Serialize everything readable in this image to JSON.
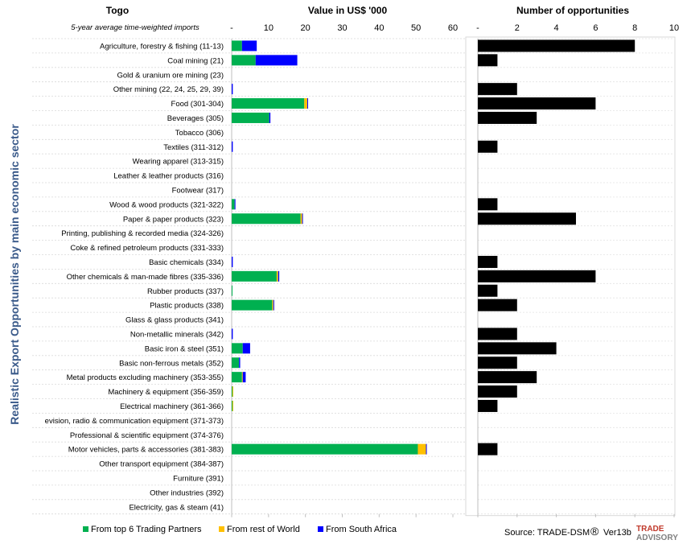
{
  "header": {
    "country": "Togo",
    "subtitle": "5-year average time-weighted imports",
    "value_title": "Value in US$ '000",
    "count_title": "Number of opportunities"
  },
  "y_axis_label": "Realistic Export Opportunities by main economic sector",
  "legend": [
    {
      "name": "From top 6 Trading Partners",
      "color": "#00b050"
    },
    {
      "name": "From rest of World",
      "color": "#ffc000"
    },
    {
      "name": "From South Africa",
      "color": "#0000ff"
    }
  ],
  "source": "Source: TRADE-DSM",
  "version": "Ver13b",
  "logo": {
    "line1": "TRADE",
    "line2": "ADVISORY"
  },
  "colors": {
    "top6": "#00b050",
    "row": "#ffc000",
    "sa": "#0000ff",
    "count": "#000000",
    "ylabel": "#3a5a8a",
    "logo_red": "#c0392b"
  },
  "chart_data": [
    {
      "type": "bar",
      "orientation": "horizontal",
      "stacked": true,
      "title": "Value in US$ '000",
      "xlim": [
        0,
        60
      ],
      "xticks": [
        "-",
        "10",
        "20",
        "30",
        "40",
        "50",
        "60"
      ],
      "categories": [
        "Agriculture, forestry & fishing (11-13)",
        "Coal mining (21)",
        "Gold & uranium ore mining (23)",
        "Other mining (22, 24, 25, 29, 39)",
        "Food (301-304)",
        "Beverages (305)",
        "Tobacco (306)",
        "Textiles (311-312)",
        "Wearing apparel (313-315)",
        "Leather & leather products (316)",
        "Footwear (317)",
        "Wood & wood products (321-322)",
        "Paper & paper products (323)",
        "Printing, publishing & recorded media (324-326)",
        "Coke & refined petroleum products (331-333)",
        "Basic chemicals (334)",
        "Other chemicals & man-made fibres (335-336)",
        "Rubber products (337)",
        "Plastic products (338)",
        "Glass & glass products (341)",
        "Non-metallic minerals (342)",
        "Basic iron & steel (351)",
        "Basic non-ferrous metals (352)",
        "Metal products excluding machinery (353-355)",
        "Machinery & equipment (356-359)",
        "Electrical machinery (361-366)",
        "evision, radio & communication equipment (371-373)",
        "Professional & scientific equipment (374-376)",
        "Motor vehicles, parts & accessories (381-383)",
        "Other transport equipment (384-387)",
        "Furniture (391)",
        "Other industries (392)",
        "Electricity, gas & steam (41)"
      ],
      "series": [
        {
          "name": "From top 6 Trading Partners",
          "values": [
            2.8,
            6.5,
            0,
            0,
            19.7,
            10.2,
            0,
            0,
            0,
            0,
            0,
            0.8,
            18.7,
            0,
            0,
            0,
            12.2,
            0.2,
            11.0,
            0,
            0,
            3.0,
            2.0,
            2.8,
            0.2,
            0.2,
            0,
            0,
            50.5,
            0,
            0,
            0,
            0
          ]
        },
        {
          "name": "From rest of World",
          "values": [
            0,
            0,
            0,
            0,
            0.8,
            0,
            0,
            0,
            0,
            0,
            0,
            0,
            0.4,
            0,
            0,
            0,
            0.4,
            0,
            0.3,
            0,
            0,
            0,
            0,
            0.2,
            0.1,
            0.1,
            0,
            0,
            2.2,
            0,
            0,
            0,
            0
          ]
        },
        {
          "name": "From South Africa",
          "values": [
            4.0,
            11.3,
            0,
            0.3,
            0.2,
            0.3,
            0,
            0.3,
            0,
            0,
            0,
            0.1,
            0.2,
            0,
            0,
            0.3,
            0.3,
            0,
            0.2,
            0,
            0.3,
            2.0,
            0.3,
            0.8,
            0,
            0,
            0,
            0,
            0.2,
            0,
            0,
            0,
            0
          ]
        }
      ]
    },
    {
      "type": "bar",
      "orientation": "horizontal",
      "title": "Number of opportunities",
      "xlim": [
        0,
        10
      ],
      "xticks": [
        "-",
        "2",
        "4",
        "6",
        "8",
        "10"
      ],
      "series": [
        {
          "name": "Number of opportunities",
          "values": [
            8,
            1,
            0,
            2,
            6,
            3,
            0,
            1,
            0,
            0,
            0,
            1,
            5,
            0,
            0,
            1,
            6,
            1,
            2,
            0,
            2,
            4,
            2,
            3,
            2,
            1,
            0,
            0,
            1,
            0,
            0,
            0,
            0
          ]
        }
      ]
    }
  ]
}
